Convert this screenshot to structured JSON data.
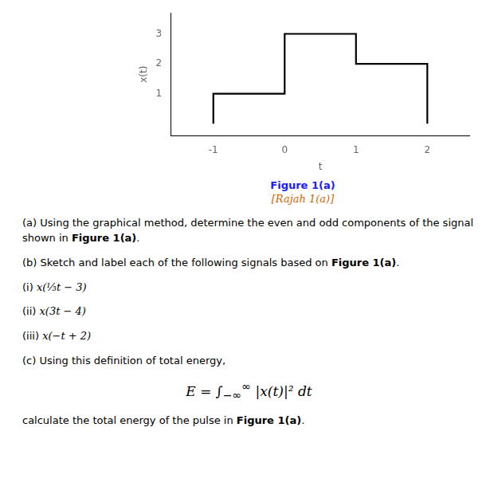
{
  "chart_data": {
    "type": "line",
    "x": [
      -1,
      -1,
      0,
      0,
      1,
      1,
      2,
      2
    ],
    "values": [
      0,
      1,
      1,
      3,
      3,
      2,
      2,
      0
    ],
    "color": "#000000",
    "xlim": [
      -1.6,
      2.6
    ],
    "ylim": [
      -0.4,
      3.7
    ],
    "xticks": [
      -1,
      0,
      1,
      2
    ],
    "yticks": [
      1,
      2,
      3
    ],
    "xlabel": "t",
    "ylabel": "x(t)",
    "grid": false,
    "caption": [
      [
        {
          "text": "Figure 1(a)",
          "style": "bold",
          "color": "#1a1aff"
        }
      ],
      [
        {
          "text": "[Rajah 1(a)]",
          "style": "italic",
          "color": "#cc6600"
        }
      ]
    ],
    "annotations": [
      [
        {
          "text": "(a) Using the graphical method, determine the even and odd components of the signal shown in "
        },
        {
          "text": "Figure 1(a)",
          "style": "bold"
        },
        {
          "text": "."
        }
      ],
      [
        {
          "text": "(b) Sketch and label each of the following signals based on "
        },
        {
          "text": "Figure 1(a)",
          "style": "bold"
        },
        {
          "text": "."
        }
      ],
      [
        {
          "text": "(i) "
        },
        {
          "text": "x(⅓t − 3)",
          "style": "italic"
        }
      ],
      [
        {
          "text": "(ii) "
        },
        {
          "text": "x(3t − 4)",
          "style": "italic"
        }
      ],
      [
        {
          "text": "(iii) "
        },
        {
          "text": "x(−t + 2)",
          "style": "italic"
        }
      ],
      [
        {
          "text": "(c) Using this definition of total energy,"
        }
      ],
      [
        {
          "text": "E = ∫",
          "style": "italic"
        },
        {
          "text": "−∞",
          "style": "sub"
        },
        {
          "text": "∞",
          "style": "sup"
        },
        {
          "text": " |x(t)|² dt",
          "style": "italic"
        }
      ],
      [
        {
          "text": "calculate the total energy of the pulse in "
        },
        {
          "text": "Figure 1(a)",
          "style": "bold"
        },
        {
          "text": "."
        }
      ]
    ]
  }
}
